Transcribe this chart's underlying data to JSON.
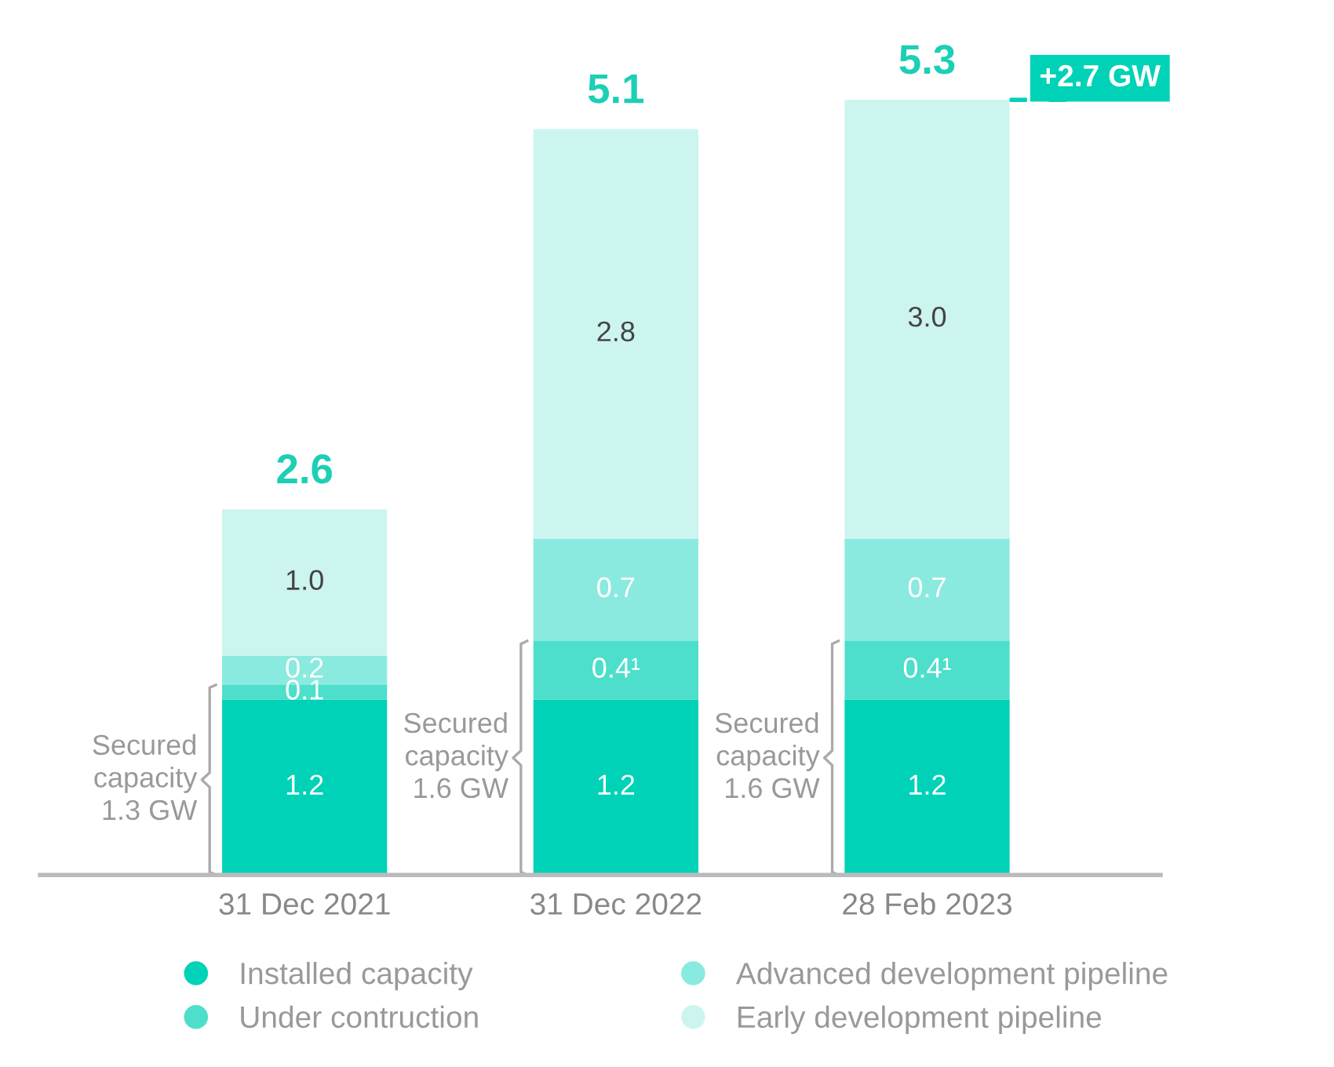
{
  "chart_data": {
    "type": "bar",
    "stacked": true,
    "categories": [
      "31 Dec 2021",
      "31 Dec 2022",
      "28 Feb 2023"
    ],
    "series": [
      {
        "name": "Installed capacity",
        "color": "#00d2b7",
        "values": [
          1.2,
          1.2,
          1.2
        ],
        "value_labels": [
          "1.2",
          "1.2",
          "1.2"
        ]
      },
      {
        "name": "Under contruction",
        "color": "#4ddfcb",
        "values": [
          0.1,
          0.4,
          0.4
        ],
        "value_labels": [
          "0.1",
          "0.4¹",
          "0.4¹"
        ]
      },
      {
        "name": "Advanced development pipeline",
        "color": "#8aeadf",
        "values": [
          0.2,
          0.7,
          0.7
        ],
        "value_labels": [
          "0.2",
          "0.7",
          "0.7"
        ]
      },
      {
        "name": "Early development pipeline",
        "color": "#cdf5f0",
        "values": [
          1.0,
          2.8,
          3.0
        ],
        "value_labels": [
          "1.0",
          "2.8",
          "3.0"
        ]
      }
    ],
    "totals": [
      "2.6",
      "5.1",
      "5.3"
    ],
    "tick_labels": "x",
    "grid": false,
    "legend": "bottom",
    "marker": "circle",
    "annotations": [
      "Secured\ncapacity\n1.3 GW",
      "Secured\ncapacity\n1.6 GW",
      "Secured\ncapacity\n1.6 GW"
    ],
    "ref_lines": [
      {
        "axis": "y",
        "value": 5.3,
        "label": "+2.7 GW",
        "color": "#00d2b7",
        "line_style": "dashed"
      }
    ]
  }
}
